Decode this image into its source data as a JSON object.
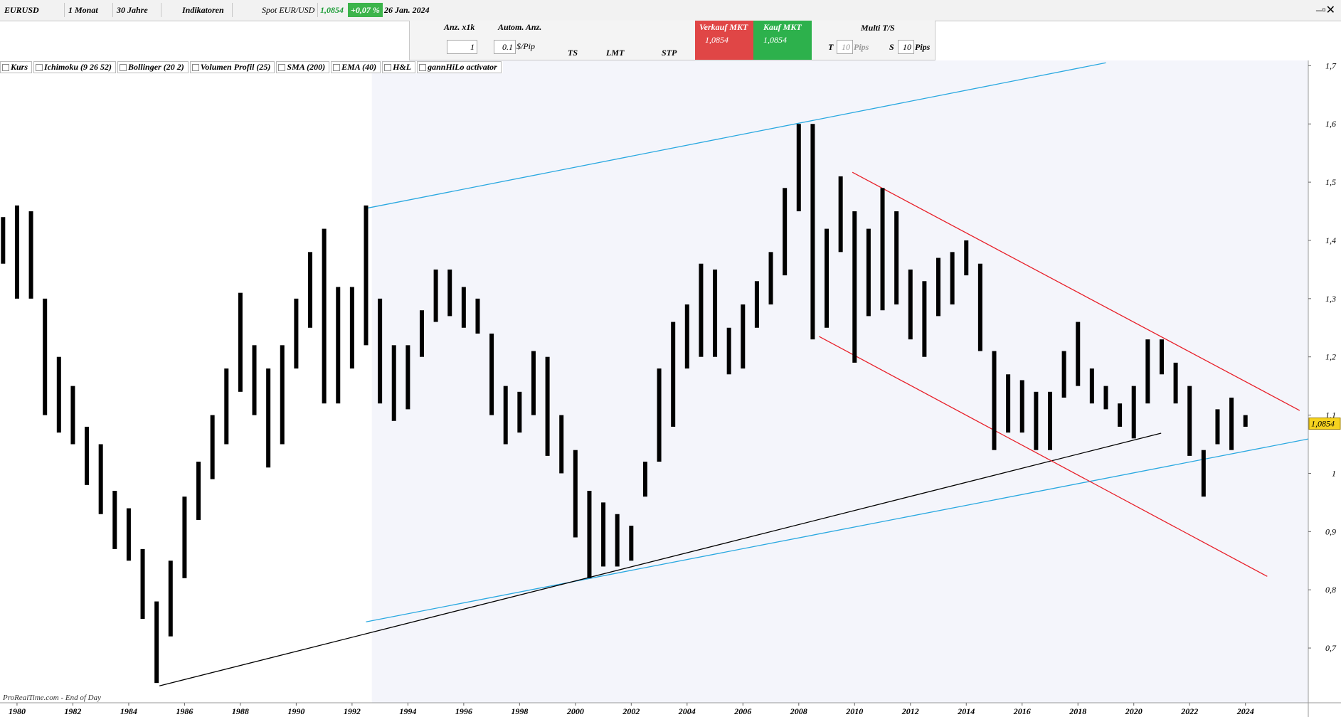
{
  "toolbar": {
    "symbol": "EURUSD",
    "period": "1 Monat",
    "range": "30 Jahre",
    "indicators": "Indikatoren",
    "spot": "Spot EUR/USD",
    "spot_price": "1,0854",
    "change": "+0,07 %",
    "date": "26 Jan. 2024"
  },
  "order_panel": {
    "qty_label": "Anz. x1k",
    "auto_label": "Autom. Anz.",
    "qty": "1",
    "pip": "0.1",
    "pip_unit": "$/Pip",
    "ts": "TS",
    "lmt": "LMT",
    "stp": "STP",
    "sell_label": "Verkauf MKT",
    "sell_price": "1,0854",
    "buy_label": "Kauf MKT",
    "buy_price": "1,0854",
    "multi": "Multi T/S",
    "t": "T",
    "t_pips": "10",
    "t_unit": "Pips",
    "s": "S",
    "s_pips": "10",
    "s_unit": "Pips"
  },
  "indicator_bar": [
    "Kurs",
    "Ichimoku (9 26 52)",
    "Bollinger (20 2)",
    "Volumen Profil (25)",
    "SMA (200)",
    "EMA (40)",
    "H&L",
    "gannHiLo activator"
  ],
  "footer": "ProRealTime.com - End of Day",
  "chart_data": {
    "type": "range-bar",
    "xlim": [
      1979.39,
      2026.25
    ],
    "ylim": [
      0.606,
      1.709
    ],
    "xticks": [
      1980,
      1982,
      1984,
      1986,
      1988,
      1990,
      1992,
      1994,
      1996,
      1998,
      2000,
      2002,
      2004,
      2006,
      2008,
      2010,
      2012,
      2014,
      2016,
      2018,
      2020,
      2022,
      2024
    ],
    "yticks": [
      {
        "value": 0.7,
        "label": "0,7"
      },
      {
        "value": 0.8,
        "label": "0,8"
      },
      {
        "value": 0.9,
        "label": "0,9"
      },
      1,
      {
        "value": 1.1,
        "label": "1,1"
      },
      {
        "value": 1.2,
        "label": "1,2"
      },
      {
        "value": 1.3,
        "label": "1,3"
      },
      {
        "value": 1.4,
        "label": "1,4"
      },
      {
        "value": 1.5,
        "label": "1,5"
      },
      {
        "value": 1.6,
        "label": "1,6"
      },
      {
        "value": 1.7,
        "label": "1,7"
      }
    ],
    "series": [
      {
        "color": "#000000",
        "x": [
          1979.5,
          1980,
          1980.5,
          1981,
          1981.5,
          1982,
          1982.5,
          1983,
          1983.5,
          1984,
          1984.5,
          1985,
          1985.5,
          1986,
          1986.5,
          1987,
          1987.5,
          1988,
          1988.5,
          1989,
          1989.5,
          1990,
          1990.5,
          1991,
          1991.5,
          1992,
          1992.5,
          1993,
          1993.5,
          1994,
          1994.5,
          1995,
          1995.5,
          1996,
          1996.5,
          1997,
          1997.5,
          1998,
          1998.5,
          1999,
          1999.5,
          2000,
          2000.5,
          2001,
          2001.5,
          2002,
          2002.5,
          2003,
          2003.5,
          2004,
          2004.5,
          2005,
          2005.5,
          2006,
          2006.5,
          2007,
          2007.5,
          2008,
          2008.5,
          2009,
          2009.5,
          2010,
          2010.5,
          2011,
          2011.5,
          2012,
          2012.5,
          2013,
          2013.5,
          2014,
          2014.5,
          2015,
          2015.5,
          2016,
          2016.5,
          2017,
          2017.5,
          2018,
          2018.5,
          2019,
          2019.5,
          2020,
          2020.5,
          2021,
          2021.5,
          2022,
          2022.5,
          2023,
          2023.5,
          2024
        ],
        "high": [
          1.44,
          1.46,
          1.45,
          1.3,
          1.2,
          1.15,
          1.08,
          1.05,
          0.97,
          0.94,
          0.87,
          0.78,
          0.85,
          0.96,
          1.02,
          1.1,
          1.18,
          1.31,
          1.22,
          1.18,
          1.22,
          1.3,
          1.38,
          1.42,
          1.32,
          1.32,
          1.46,
          1.3,
          1.22,
          1.22,
          1.28,
          1.35,
          1.35,
          1.32,
          1.3,
          1.24,
          1.15,
          1.14,
          1.21,
          1.2,
          1.1,
          1.04,
          0.97,
          0.95,
          0.93,
          0.91,
          1.02,
          1.18,
          1.26,
          1.29,
          1.36,
          1.35,
          1.25,
          1.29,
          1.33,
          1.38,
          1.49,
          1.6,
          1.6,
          1.42,
          1.51,
          1.45,
          1.42,
          1.49,
          1.45,
          1.35,
          1.33,
          1.37,
          1.38,
          1.4,
          1.36,
          1.21,
          1.17,
          1.16,
          1.14,
          1.14,
          1.21,
          1.26,
          1.18,
          1.15,
          1.12,
          1.15,
          1.23,
          1.23,
          1.19,
          1.15,
          1.04,
          1.11,
          1.13,
          1.1
        ],
        "low": [
          1.36,
          1.3,
          1.3,
          1.1,
          1.07,
          1.05,
          0.98,
          0.93,
          0.87,
          0.85,
          0.75,
          0.64,
          0.72,
          0.82,
          0.92,
          0.99,
          1.05,
          1.14,
          1.1,
          1.01,
          1.05,
          1.18,
          1.25,
          1.12,
          1.12,
          1.18,
          1.22,
          1.12,
          1.09,
          1.11,
          1.2,
          1.26,
          1.27,
          1.25,
          1.24,
          1.1,
          1.05,
          1.07,
          1.1,
          1.03,
          1.0,
          0.89,
          0.82,
          0.84,
          0.84,
          0.85,
          0.96,
          1.02,
          1.08,
          1.18,
          1.2,
          1.2,
          1.17,
          1.18,
          1.25,
          1.29,
          1.34,
          1.45,
          1.23,
          1.25,
          1.38,
          1.19,
          1.27,
          1.28,
          1.29,
          1.23,
          1.2,
          1.27,
          1.29,
          1.34,
          1.21,
          1.04,
          1.07,
          1.07,
          1.04,
          1.04,
          1.13,
          1.15,
          1.12,
          1.11,
          1.08,
          1.06,
          1.12,
          1.17,
          1.12,
          1.03,
          0.96,
          1.05,
          1.04,
          1.08
        ]
      }
    ],
    "trendlines": [
      {
        "color": "#29a8e0",
        "x": [
          1992.5,
          2019
        ],
        "y": [
          1.455,
          1.705
        ]
      },
      {
        "color": "#29a8e0",
        "x": [
          1992.5,
          2026.25
        ],
        "y": [
          0.745,
          1.059
        ]
      },
      {
        "color": "#000000",
        "x": [
          1985.1,
          2020.98
        ],
        "y": [
          0.635,
          1.069
        ]
      },
      {
        "color": "#e8202a",
        "x": [
          2009.92,
          2025.94
        ],
        "y": [
          1.517,
          1.108
        ]
      },
      {
        "color": "#e8202a",
        "x": [
          2008.73,
          2024.78
        ],
        "y": [
          1.235,
          0.823
        ]
      }
    ],
    "channel": {
      "color": "#f4f5fb",
      "x": [
        1992.71,
        2026.25
      ]
    },
    "last_price": {
      "value": 1.0854,
      "label": "1,0854",
      "color": "#f5d21f"
    }
  }
}
